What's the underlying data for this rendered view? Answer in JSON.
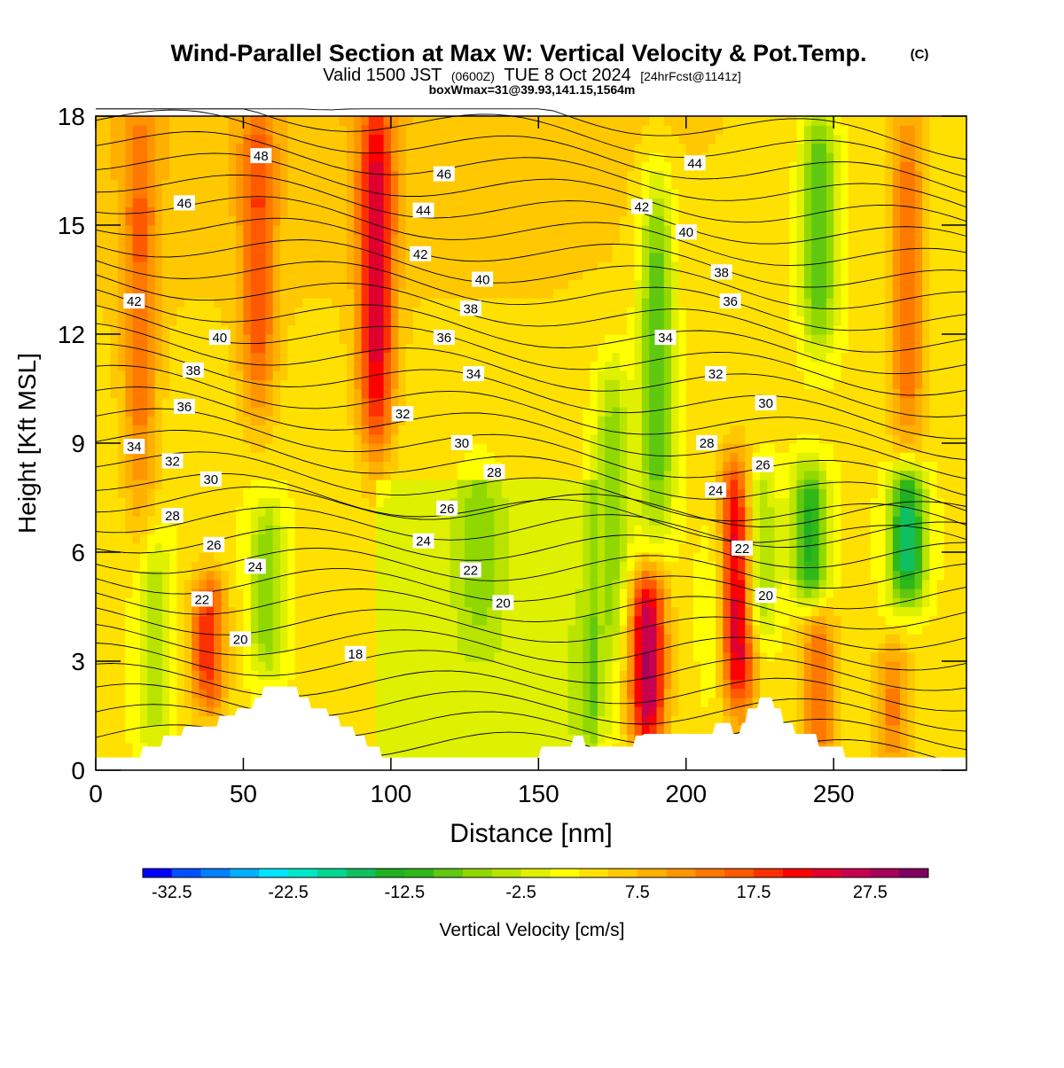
{
  "header": {
    "title": "Wind-Parallel Section at Max W: Vertical Velocity & Pot.Temp.",
    "copyright": "(C)",
    "valid_prefix": "Valid 1500 JST",
    "valid_utc": "(0600Z)",
    "valid_date": "TUE 8 Oct 2024",
    "forecast": "[24hrFcst@1141z]",
    "box_info": "boxWmax=31@39.93,141.15,1564m"
  },
  "chart_data": {
    "type": "heatmap",
    "xlabel": "Distance [nm]",
    "ylabel": "Height [Kft MSL]",
    "xlim": [
      0,
      295
    ],
    "ylim": [
      0,
      18
    ],
    "x_ticks": [
      0,
      50,
      100,
      150,
      200,
      250
    ],
    "y_ticks": [
      0,
      3,
      6,
      9,
      12,
      15,
      18
    ],
    "colorbar": {
      "label": "Vertical Velocity [cm/s]",
      "tick_labels": [
        "-32.5",
        "-22.5",
        "-12.5",
        "-2.5",
        "7.5",
        "17.5",
        "27.5"
      ],
      "min": -35,
      "max": 32.5,
      "step": 2.5,
      "colors": [
        "#0000ff",
        "#0050ff",
        "#0080ff",
        "#00b0ff",
        "#00e4ff",
        "#00e8c8",
        "#00d890",
        "#10c060",
        "#20b020",
        "#30b818",
        "#60c810",
        "#90d800",
        "#b8e400",
        "#dff000",
        "#ffff00",
        "#ffe000",
        "#ffc800",
        "#ffb000",
        "#ff9600",
        "#ff7800",
        "#ff5a00",
        "#ff3000",
        "#ff0000",
        "#e00030",
        "#c80050",
        "#a8005a",
        "#800060"
      ]
    },
    "w_features": [
      {
        "x": 95,
        "zmin": 9,
        "zmax": 18,
        "w": 20
      },
      {
        "x": 55,
        "zmin": 10,
        "zmax": 18,
        "w": 12
      },
      {
        "x": 15,
        "zmin": 7,
        "zmax": 18,
        "w": 10
      },
      {
        "x": 275,
        "zmin": 9,
        "zmax": 18,
        "w": 12
      },
      {
        "x": 245,
        "zmin": 12,
        "zmax": 18,
        "w": -14
      },
      {
        "x": 190,
        "zmin": 7,
        "zmax": 16,
        "w": -14
      },
      {
        "x": 175,
        "zmin": 4,
        "zmax": 11,
        "w": -10
      },
      {
        "x": 187,
        "zmin": 1,
        "zmax": 5,
        "w": 25
      },
      {
        "x": 217,
        "zmin": 2,
        "zmax": 8,
        "w": 28
      },
      {
        "x": 224,
        "zmin": 4,
        "zmax": 8,
        "w": -12
      },
      {
        "x": 213,
        "zmin": 2,
        "zmax": 7,
        "w": -8
      },
      {
        "x": 242,
        "zmin": 5,
        "zmax": 8,
        "w": -16
      },
      {
        "x": 275,
        "zmin": 5,
        "zmax": 8,
        "w": -20
      },
      {
        "x": 38,
        "zmin": 2,
        "zmax": 5,
        "w": 16
      },
      {
        "x": 20,
        "zmin": 1,
        "zmax": 6,
        "w": -8
      },
      {
        "x": 58,
        "zmin": 3,
        "zmax": 7,
        "w": -10
      },
      {
        "x": 245,
        "zmin": 0.5,
        "zmax": 4,
        "w": 12
      },
      {
        "x": 270,
        "zmin": 0.5,
        "zmax": 3,
        "w": 10
      },
      {
        "x": 130,
        "zmin": 4,
        "zmax": 8,
        "w": -5
      },
      {
        "x": 170,
        "zmin": 1,
        "zmax": 4,
        "w": -6
      }
    ],
    "theta_labels": [
      {
        "x": 56,
        "z": 16.9,
        "text": "48"
      },
      {
        "x": 30,
        "z": 15.6,
        "text": "46"
      },
      {
        "x": 118,
        "z": 16.4,
        "text": "46"
      },
      {
        "x": 203,
        "z": 16.7,
        "text": "44"
      },
      {
        "x": 111,
        "z": 15.4,
        "text": "44"
      },
      {
        "x": 185,
        "z": 15.5,
        "text": "42"
      },
      {
        "x": 110,
        "z": 14.2,
        "text": "42"
      },
      {
        "x": 13,
        "z": 12.9,
        "text": "42"
      },
      {
        "x": 200,
        "z": 14.8,
        "text": "40"
      },
      {
        "x": 131,
        "z": 13.5,
        "text": "40"
      },
      {
        "x": 42,
        "z": 11.9,
        "text": "40"
      },
      {
        "x": 212,
        "z": 13.7,
        "text": "38"
      },
      {
        "x": 127,
        "z": 12.7,
        "text": "38"
      },
      {
        "x": 33,
        "z": 11.0,
        "text": "38"
      },
      {
        "x": 215,
        "z": 12.9,
        "text": "36"
      },
      {
        "x": 118,
        "z": 11.9,
        "text": "36"
      },
      {
        "x": 30,
        "z": 10.0,
        "text": "36"
      },
      {
        "x": 193,
        "z": 11.9,
        "text": "34"
      },
      {
        "x": 128,
        "z": 10.9,
        "text": "34"
      },
      {
        "x": 13,
        "z": 8.9,
        "text": "34"
      },
      {
        "x": 210,
        "z": 10.9,
        "text": "32"
      },
      {
        "x": 104,
        "z": 9.8,
        "text": "32"
      },
      {
        "x": 26,
        "z": 8.5,
        "text": "32"
      },
      {
        "x": 227,
        "z": 10.1,
        "text": "30"
      },
      {
        "x": 124,
        "z": 9.0,
        "text": "30"
      },
      {
        "x": 39,
        "z": 8.0,
        "text": "30"
      },
      {
        "x": 207,
        "z": 9.0,
        "text": "28"
      },
      {
        "x": 135,
        "z": 8.2,
        "text": "28"
      },
      {
        "x": 26,
        "z": 7.0,
        "text": "28"
      },
      {
        "x": 226,
        "z": 8.4,
        "text": "26"
      },
      {
        "x": 119,
        "z": 7.2,
        "text": "26"
      },
      {
        "x": 40,
        "z": 6.2,
        "text": "26"
      },
      {
        "x": 210,
        "z": 7.7,
        "text": "24"
      },
      {
        "x": 111,
        "z": 6.3,
        "text": "24"
      },
      {
        "x": 54,
        "z": 5.6,
        "text": "24"
      },
      {
        "x": 219,
        "z": 6.1,
        "text": "22"
      },
      {
        "x": 127,
        "z": 5.5,
        "text": "22"
      },
      {
        "x": 36,
        "z": 4.7,
        "text": "22"
      },
      {
        "x": 227,
        "z": 4.8,
        "text": "20"
      },
      {
        "x": 138,
        "z": 4.6,
        "text": "20"
      },
      {
        "x": 49,
        "z": 3.6,
        "text": "20"
      },
      {
        "x": 88,
        "z": 3.2,
        "text": "18"
      }
    ],
    "terrain": [
      [
        0,
        0.35
      ],
      [
        15,
        0.35
      ],
      [
        16,
        0.65
      ],
      [
        22,
        0.65
      ],
      [
        23,
        0.95
      ],
      [
        29,
        0.95
      ],
      [
        30,
        1.2
      ],
      [
        41,
        1.2
      ],
      [
        42,
        1.5
      ],
      [
        47,
        1.5
      ],
      [
        48,
        1.7
      ],
      [
        53,
        1.7
      ],
      [
        54,
        2.0
      ],
      [
        56,
        2.0
      ],
      [
        57,
        2.3
      ],
      [
        68,
        2.3
      ],
      [
        69,
        2.0
      ],
      [
        72,
        2.0
      ],
      [
        73,
        1.7
      ],
      [
        78,
        1.7
      ],
      [
        79,
        1.5
      ],
      [
        82,
        1.5
      ],
      [
        83,
        1.2
      ],
      [
        87,
        1.2
      ],
      [
        88,
        0.95
      ],
      [
        91,
        0.95
      ],
      [
        92,
        0.65
      ],
      [
        96,
        0.65
      ],
      [
        97,
        0.35
      ],
      [
        150,
        0.35
      ],
      [
        151,
        0.65
      ],
      [
        161,
        0.65
      ],
      [
        162,
        0.95
      ],
      [
        165,
        0.95
      ],
      [
        166,
        0.65
      ],
      [
        182,
        0.65
      ],
      [
        183,
        0.95
      ],
      [
        185,
        0.95
      ],
      [
        186,
        1.0
      ],
      [
        209,
        1.0
      ],
      [
        210,
        1.3
      ],
      [
        215,
        1.3
      ],
      [
        216,
        1.0
      ],
      [
        218,
        1.0
      ],
      [
        219,
        1.3
      ],
      [
        220,
        1.3
      ],
      [
        221,
        1.7
      ],
      [
        224,
        1.7
      ],
      [
        225,
        2.0
      ],
      [
        229,
        2.0
      ],
      [
        230,
        1.7
      ],
      [
        232,
        1.7
      ],
      [
        233,
        1.3
      ],
      [
        236,
        1.3
      ],
      [
        237,
        1.0
      ],
      [
        244,
        1.0
      ],
      [
        245,
        0.65
      ],
      [
        253,
        0.65
      ],
      [
        254,
        0.35
      ],
      [
        295,
        0.35
      ]
    ]
  }
}
